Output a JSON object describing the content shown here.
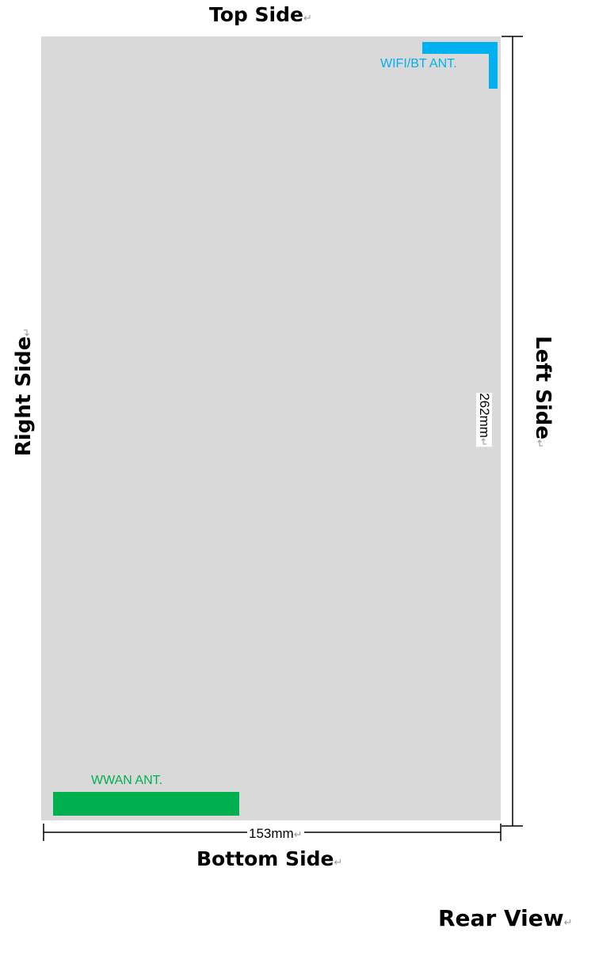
{
  "labels": {
    "top": "Top Side",
    "bottom": "Bottom Side",
    "right": "Right Side",
    "left": "Left Side",
    "view": "Rear View",
    "return_mark": "↵"
  },
  "dimensions": {
    "width": "153mm",
    "height": "262mm"
  },
  "antennas": {
    "wifi_bt": "WIFI/BT ANT.",
    "wwan": "WWAN ANT."
  },
  "colors": {
    "board": "#d9d9d9",
    "wifi": "#00b0f0",
    "wwan": "#00b050"
  }
}
